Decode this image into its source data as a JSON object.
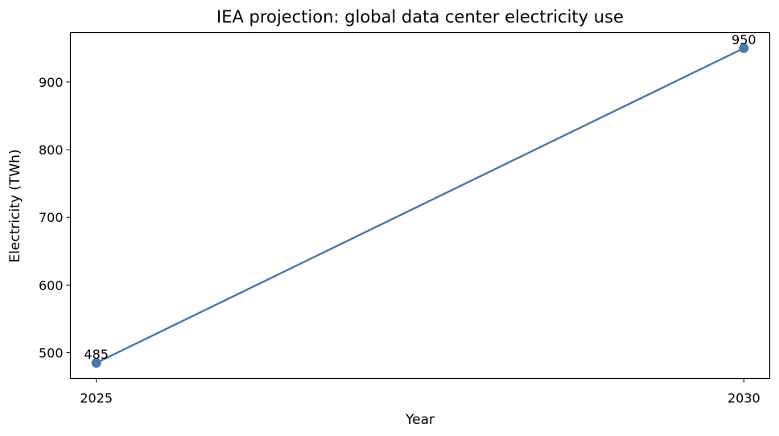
{
  "chart_data": {
    "type": "line",
    "title": "IEA projection: global data center electricity use",
    "xlabel": "Year",
    "ylabel": "Electricity (TWh)",
    "x": [
      2025,
      2030
    ],
    "series": [
      {
        "values": [
          485,
          950
        ],
        "color": "#4a78a8"
      }
    ],
    "data_labels": [
      "485",
      "950"
    ],
    "xticks": [
      2025,
      2030
    ],
    "yticks": [
      500,
      600,
      700,
      800,
      900
    ],
    "xlim": [
      2024.8,
      2030.2
    ],
    "ylim": [
      462,
      973
    ],
    "grid": false,
    "legend": false
  }
}
